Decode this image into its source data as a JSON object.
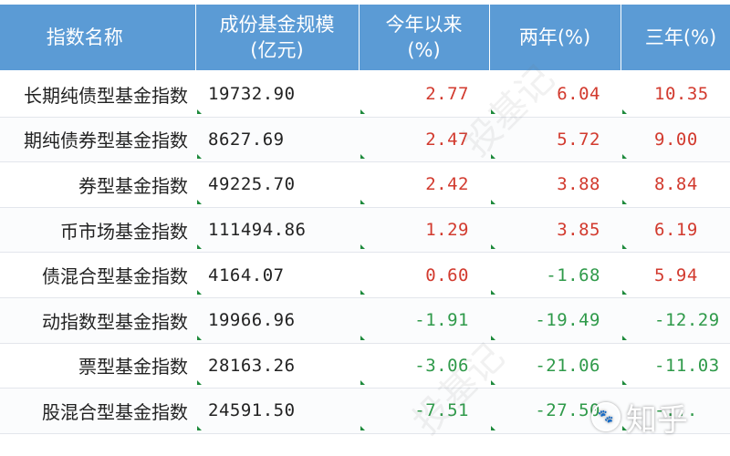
{
  "table": {
    "headers": {
      "name": "指数名称",
      "size_line1": "成份基金规模",
      "size_line2": "(亿元)",
      "ytd_line1": "今年以来",
      "ytd_line2": "(%)",
      "two_year": "两年(%)",
      "three_year": "三年(%)"
    },
    "rows": [
      {
        "name": "长期纯债型基金指数",
        "size": "19732.90",
        "ytd": "2.77",
        "two_year": "6.04",
        "three_year": "10.35"
      },
      {
        "name": "期纯债券型基金指数",
        "size": "8627.69",
        "ytd": "2.47",
        "two_year": "5.72",
        "three_year": "9.00"
      },
      {
        "name": "券型基金指数",
        "size": "49225.70",
        "ytd": "2.42",
        "two_year": "3.88",
        "three_year": "8.84"
      },
      {
        "name": "币市场基金指数",
        "size": "111494.86",
        "ytd": "1.29",
        "two_year": "3.85",
        "three_year": "6.19"
      },
      {
        "name": "债混合型基金指数",
        "size": "4164.07",
        "ytd": "0.60",
        "two_year": "-1.68",
        "three_year": "5.94"
      },
      {
        "name": "动指数型基金指数",
        "size": "19966.96",
        "ytd": "-1.91",
        "two_year": "-19.49",
        "three_year": "-12.29"
      },
      {
        "name": "票型基金指数",
        "size": "28163.26",
        "ytd": "-3.06",
        "two_year": "-21.06",
        "three_year": "-11.03"
      },
      {
        "name": "股混合型基金指数",
        "size": "24591.50",
        "ytd": "-7.51",
        "two_year": "-27.50",
        "three_year": "-..."
      }
    ]
  },
  "watermark": {
    "text": "投基记"
  },
  "badge": {
    "icon": "paw-icon",
    "text": "知乎"
  },
  "colors": {
    "header_bg": "#5b9bd5",
    "positive": "#d23a2e",
    "negative": "#2f9a4a"
  }
}
